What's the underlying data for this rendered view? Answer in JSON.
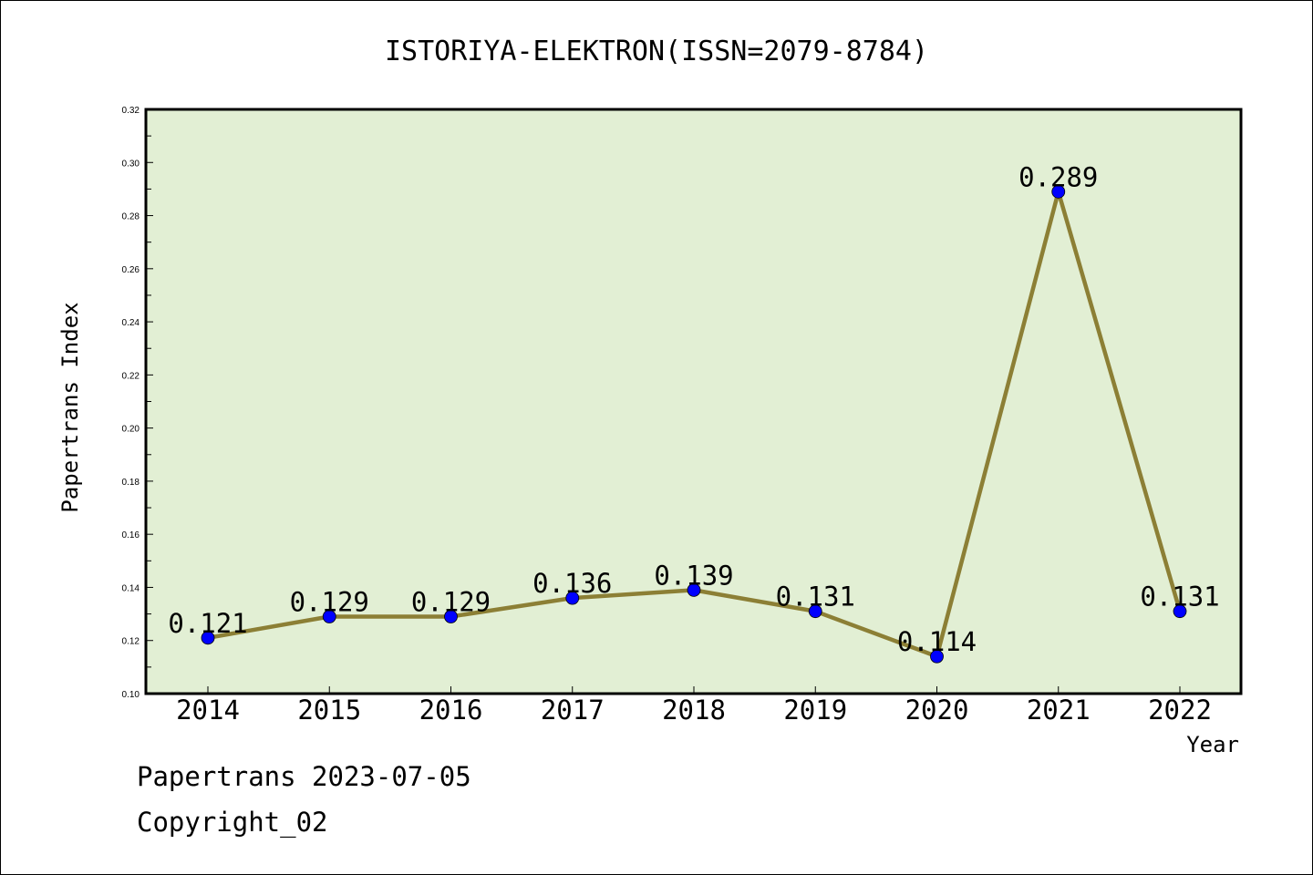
{
  "chart_data": {
    "type": "line",
    "title": "ISTORIYA-ELEKTRON(ISSN=2079-8784)",
    "xlabel": "Year",
    "ylabel": "Papertrans Index",
    "categories": [
      "2014",
      "2015",
      "2016",
      "2017",
      "2018",
      "2019",
      "2020",
      "2021",
      "2022"
    ],
    "series": [
      {
        "values": [
          0.121,
          0.129,
          0.129,
          0.136,
          0.139,
          0.131,
          0.114,
          0.289,
          0.131
        ],
        "labels": [
          "0.121",
          "0.129",
          "0.129",
          "0.136",
          "0.139",
          "0.131",
          "0.114",
          "0.289",
          "0.131"
        ]
      }
    ],
    "ylim": [
      0.1,
      0.32
    ],
    "yticks": [
      "0.10",
      "0.12",
      "0.14",
      "0.16",
      "0.18",
      "0.20",
      "0.22",
      "0.24",
      "0.26",
      "0.28",
      "0.30",
      "0.32"
    ],
    "grid": false,
    "colors": {
      "plot_background": "#e2efd4",
      "line": "#8c7f35",
      "marker": "#0000ff"
    }
  },
  "footer": {
    "date_line": "Papertrans 2023-07-05",
    "copyright": "Copyright_02"
  }
}
